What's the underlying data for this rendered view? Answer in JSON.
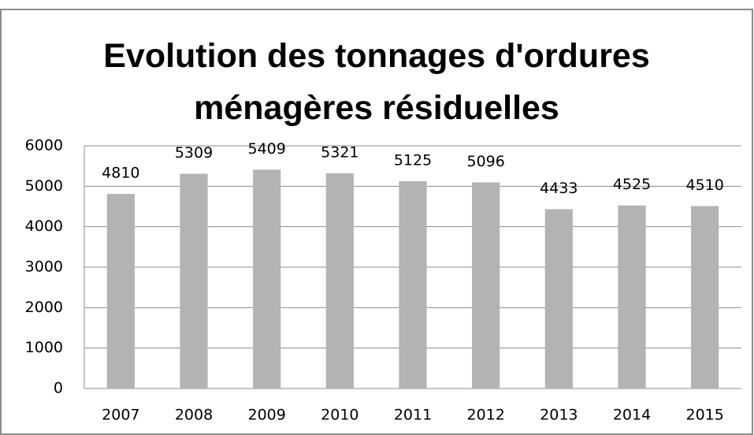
{
  "chart_data": {
    "type": "bar",
    "title": "Evolution des tonnages d'ordures ménagères résiduelles",
    "categories": [
      "2007",
      "2008",
      "2009",
      "2010",
      "2011",
      "2012",
      "2013",
      "2014",
      "2015"
    ],
    "values": [
      4810,
      5309,
      5409,
      5321,
      5125,
      5096,
      4433,
      4525,
      4510
    ],
    "color": "#b3b3b3",
    "ylim": [
      0,
      6000
    ],
    "yticks": [
      0,
      1000,
      2000,
      3000,
      4000,
      5000,
      6000
    ],
    "grid": true
  }
}
